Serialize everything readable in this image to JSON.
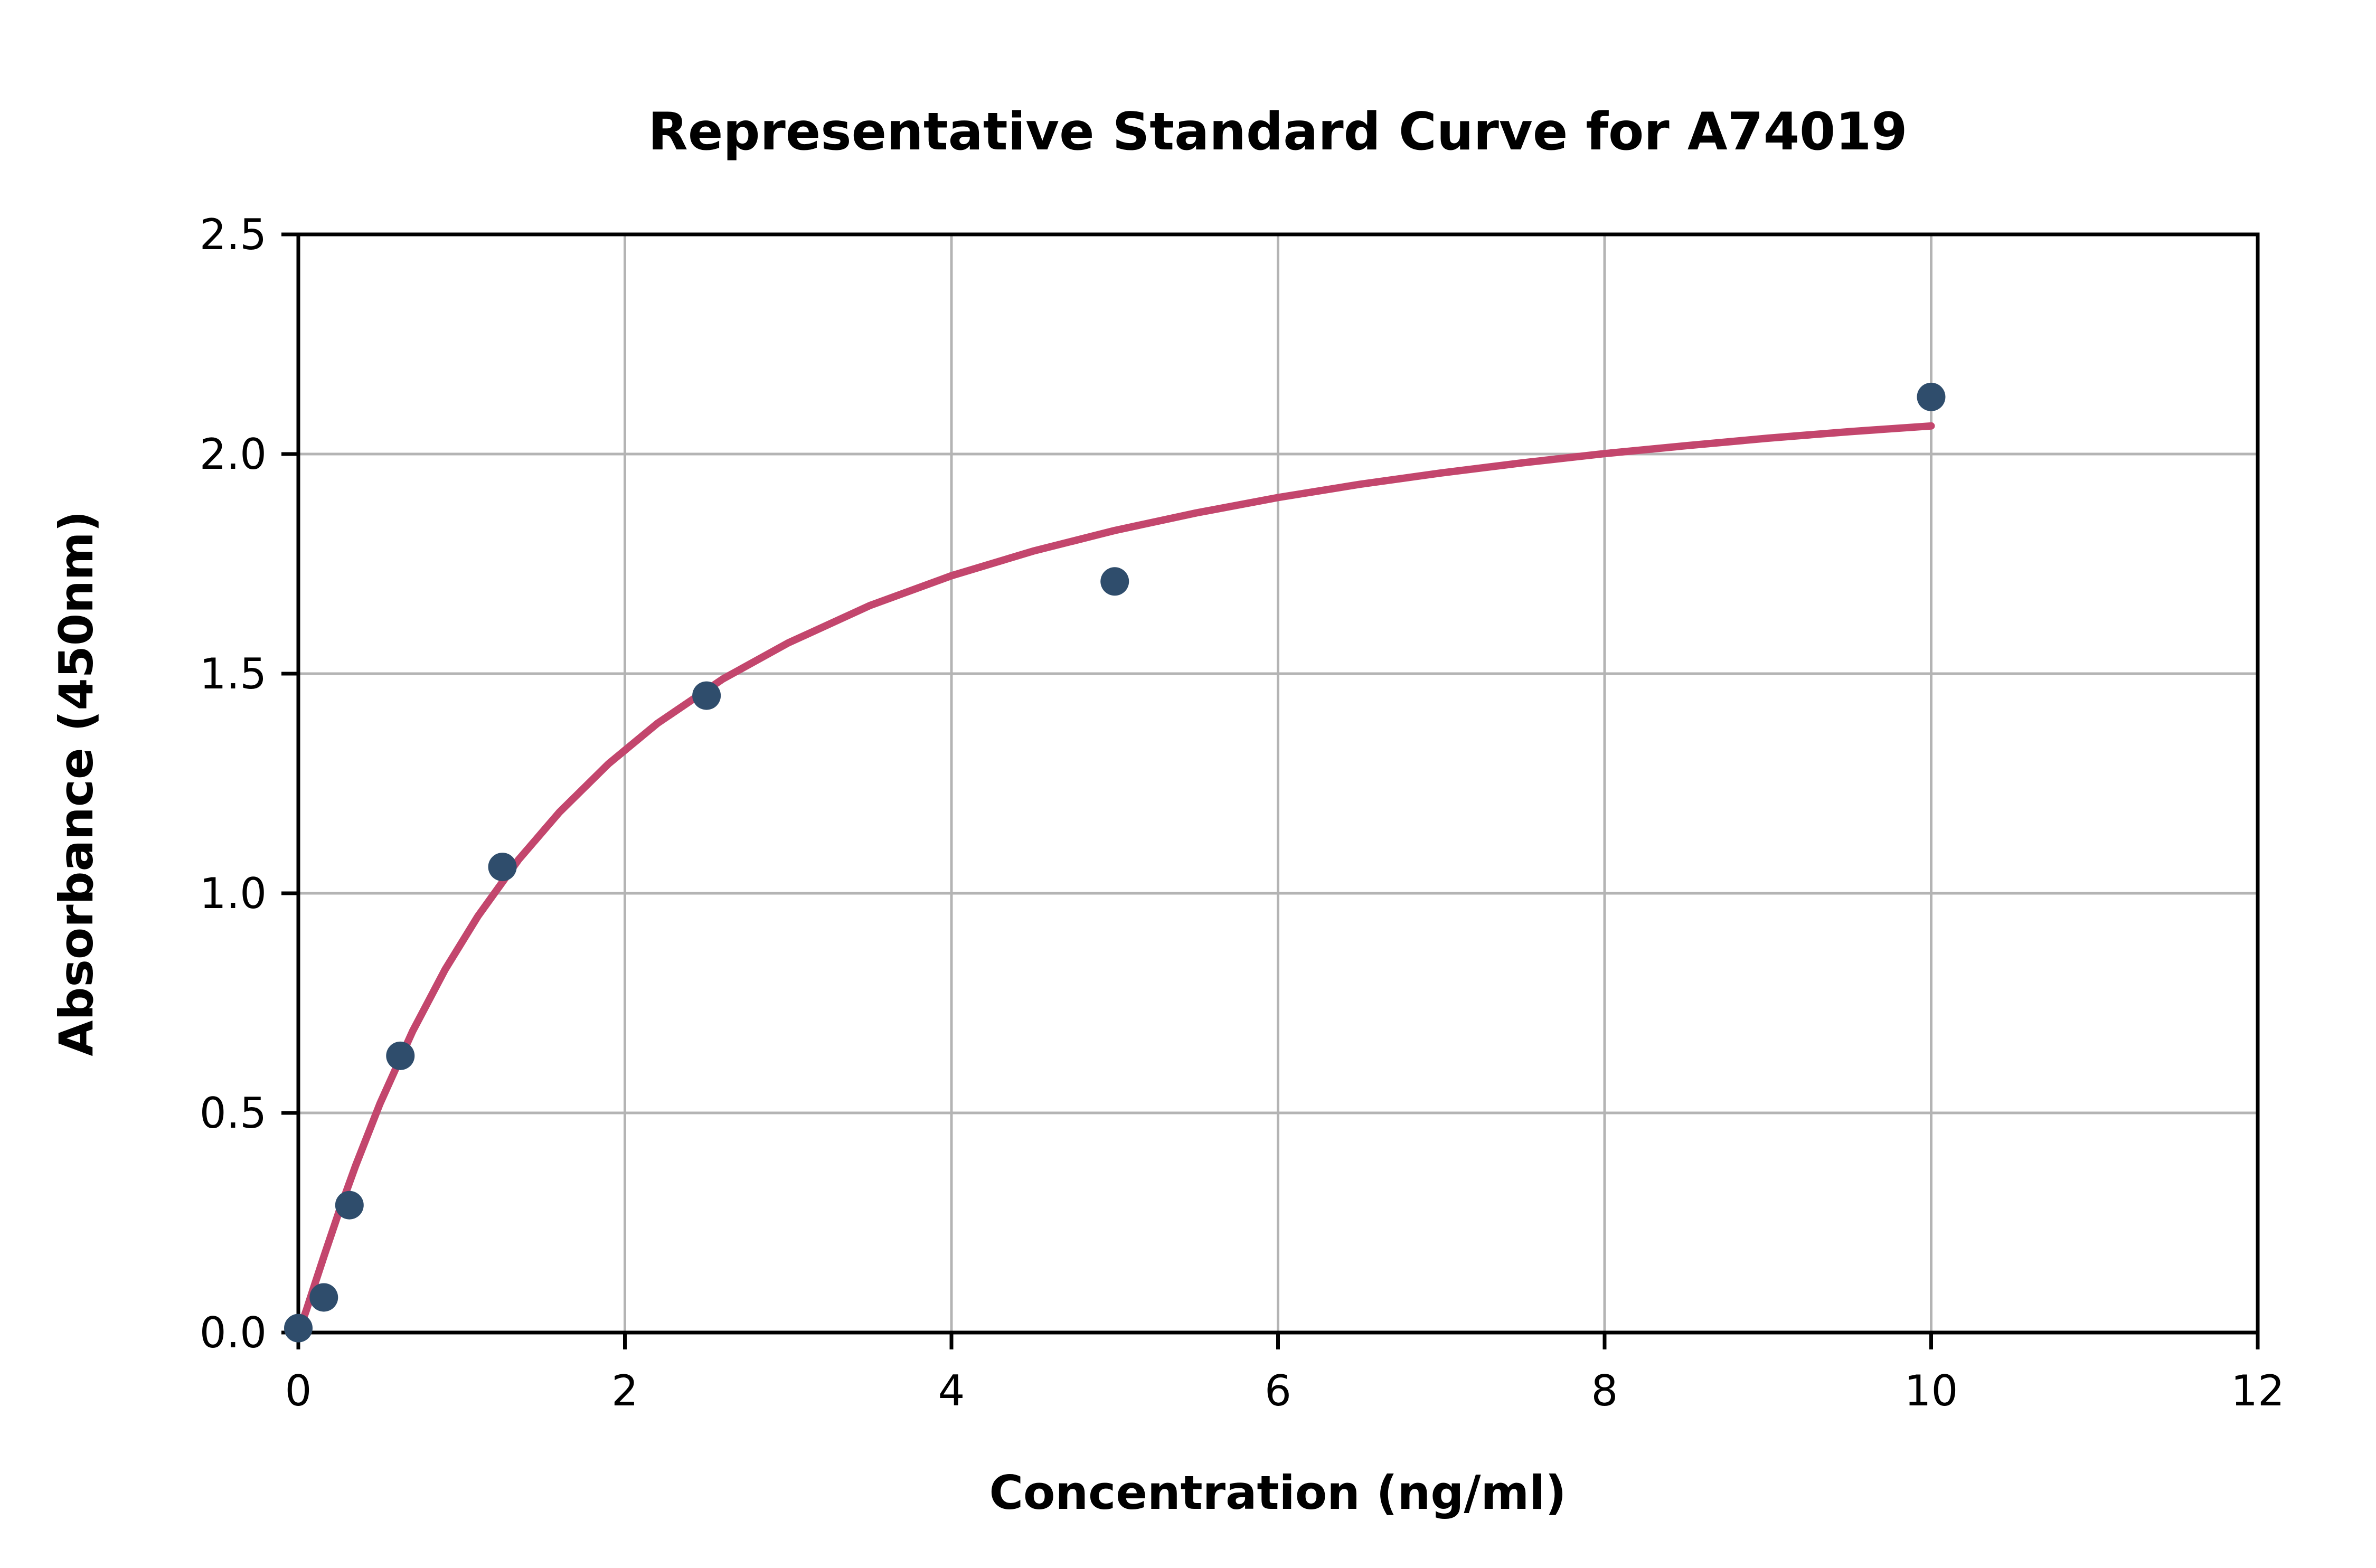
{
  "chart_data": {
    "type": "scatter",
    "title": "Representative Standard Curve for A74019",
    "xlabel": "Concentration (ng/ml)",
    "ylabel": "Absorbance (450nm)",
    "xlim": [
      0,
      12
    ],
    "ylim": [
      0,
      2.5
    ],
    "x_ticks": [
      0,
      2,
      4,
      6,
      8,
      10,
      12
    ],
    "x_tick_labels": [
      "0",
      "2",
      "4",
      "6",
      "8",
      "10",
      "12"
    ],
    "y_ticks": [
      0,
      0.5,
      1.0,
      1.5,
      2.0,
      2.5
    ],
    "y_tick_labels": [
      "0.0",
      "0.5",
      "1.0",
      "1.5",
      "2.0",
      "2.5"
    ],
    "grid": true,
    "legend": "none",
    "series": [
      {
        "name": "standard-points",
        "type": "scatter",
        "points": [
          [
            0,
            0.01
          ],
          [
            0.156,
            0.08
          ],
          [
            0.313,
            0.29
          ],
          [
            0.625,
            0.63
          ],
          [
            1.25,
            1.06
          ],
          [
            2.5,
            1.45
          ],
          [
            5,
            1.71
          ],
          [
            10,
            2.13
          ]
        ]
      },
      {
        "name": "fitted-curve",
        "type": "line",
        "points": [
          [
            0.02,
            0.02
          ],
          [
            0.05,
            0.052
          ],
          [
            0.1,
            0.109
          ],
          [
            0.16,
            0.177
          ],
          [
            0.25,
            0.276
          ],
          [
            0.35,
            0.379
          ],
          [
            0.5,
            0.521
          ],
          [
            0.7,
            0.686
          ],
          [
            0.9,
            0.827
          ],
          [
            1.1,
            0.948
          ],
          [
            1.35,
            1.077
          ],
          [
            1.6,
            1.185
          ],
          [
            1.9,
            1.295
          ],
          [
            2.2,
            1.387
          ],
          [
            2.6,
            1.488
          ],
          [
            3.0,
            1.57
          ],
          [
            3.5,
            1.655
          ],
          [
            4.0,
            1.723
          ],
          [
            4.5,
            1.779
          ],
          [
            5.0,
            1.826
          ],
          [
            5.5,
            1.866
          ],
          [
            6.0,
            1.901
          ],
          [
            6.5,
            1.931
          ],
          [
            7.0,
            1.957
          ],
          [
            7.5,
            1.98
          ],
          [
            8.0,
            2.001
          ],
          [
            8.5,
            2.019
          ],
          [
            9.0,
            2.036
          ],
          [
            9.5,
            2.051
          ],
          [
            10.0,
            2.064
          ]
        ]
      }
    ],
    "colors": {
      "marker": "#2f4d6c",
      "line": "#c3466d",
      "grid": "#b4b4b4",
      "axis": "#000000",
      "background": "#ffffff"
    }
  }
}
